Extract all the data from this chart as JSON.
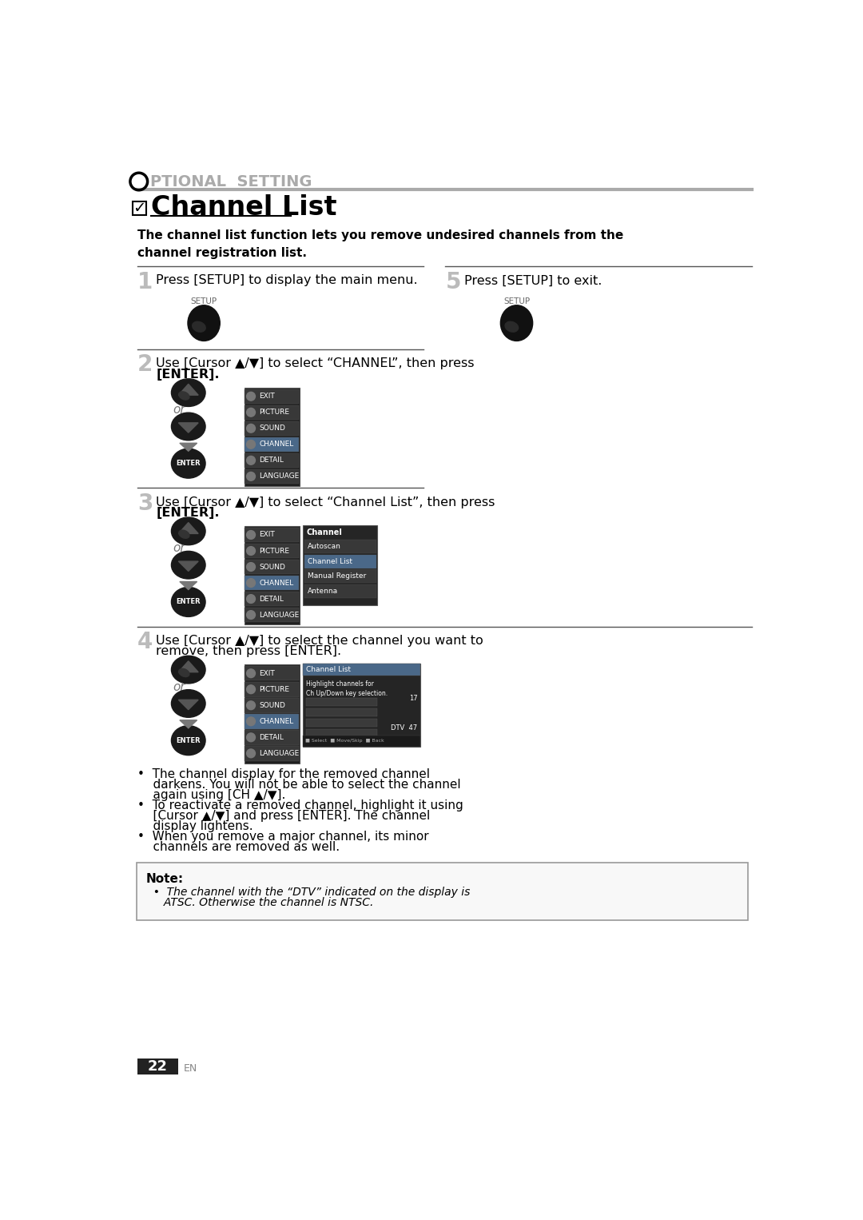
{
  "bg_color": "#ffffff",
  "page_number": "22",
  "header_text": "PTIONAL  SETTING",
  "title": "Channel List",
  "subtitle": "The channel list function lets you remove undesired channels from the\nchannel registration list.",
  "step1_text": "Press [SETUP] to display the main menu.",
  "step2_line1": "Use [Cursor ▲/▼] to select “CHANNEL”, then press",
  "step2_line2": "[ENTER].",
  "step3_line1": "Use [Cursor ▲/▼] to select “Channel List”, then press",
  "step3_line2": "[ENTER].",
  "step4_line1": "Use [Cursor ▲/▼] to select the channel you want to",
  "step4_line2": "remove, then press [ENTER].",
  "step5_text": "Press [SETUP] to exit.",
  "bullet1_line1": "•  The channel display for the removed channel",
  "bullet1_line2": "    darkens. You will not be able to select the channel",
  "bullet1_line3": "    again using [CH ▲/▼].",
  "bullet2_line1": "•  To reactivate a removed channel, highlight it using",
  "bullet2_line2": "    [Cursor ▲/▼] and press [ENTER]. The channel",
  "bullet2_line3": "    display lightens.",
  "bullet3_line1": "•  When you remove a major channel, its minor",
  "bullet3_line2": "    channels are removed as well.",
  "note_title": "Note:",
  "note_line1": "  •  The channel with the “DTV” indicated on the display is",
  "note_line2": "     ATSC. Otherwise the channel is NTSC.",
  "menu2_items": [
    "EXIT",
    "PICTURE",
    "SOUND",
    "CHANNEL",
    "DETAIL",
    "LANGUAGE"
  ],
  "menu2_highlight": 3,
  "sub3_items": [
    "Autoscan",
    "Channel List",
    "Manual Register",
    "Antenna"
  ],
  "sub3_highlight": 1,
  "side_items": [
    "EXIT",
    "PICTURE",
    "SOUND",
    "CHANNEL",
    "DETAIL",
    "LANGUAGE"
  ],
  "side_highlight": 3
}
